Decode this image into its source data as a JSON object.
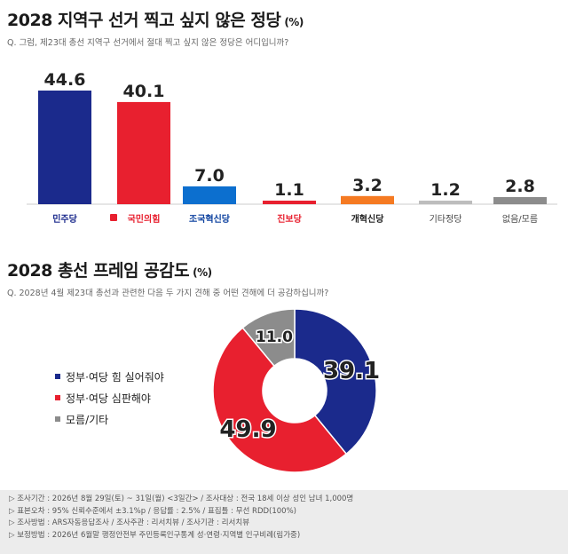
{
  "section1": {
    "title": "2028 지역구 선거 찍고 싶지 않은 정당",
    "unit": "(%)",
    "question": "Q. 그럼, 제23대 총선 지역구 선거에서 절대 찍고 싶지 않은 정당은 어디입니까?"
  },
  "section2": {
    "title": "2028 총선 프레임 공감도",
    "unit": "(%)",
    "question": "Q. 2028년 4월 제23대 총선과 관련한 다음 두 가지 견해 중 어떤 견해에 더 공감하십니까?"
  },
  "chart_data": [
    {
      "type": "bar",
      "categories": [
        "민주당",
        "국민의힘",
        "조국혁신당",
        "진보당",
        "개혁신당",
        "기타정당",
        "없음/모름"
      ],
      "values": [
        44.6,
        40.1,
        7.0,
        1.1,
        3.2,
        1.2,
        2.8
      ],
      "value_labels": [
        "44.6",
        "40.1",
        "7.0",
        "1.1",
        "3.2",
        "1.2",
        "2.8"
      ],
      "colors": [
        "#1b2a8c",
        "#e8202f",
        "#0c6fcf",
        "#e8202f",
        "#f57a22",
        "#bdbdbd",
        "#8c8c8c"
      ],
      "label_colors": [
        "#1b2a8c",
        "#e8202f",
        "#0a3f9e",
        "#e8202f",
        "#222222",
        "#444444",
        "#444444"
      ],
      "ylim": [
        0,
        50
      ]
    },
    {
      "type": "pie",
      "donut": true,
      "categories": [
        "정부·여당 힘 실어줘야",
        "정부·여당 심판해야",
        "모름/기타"
      ],
      "values": [
        39.1,
        49.9,
        11.0
      ],
      "value_labels": [
        "39.1",
        "49.9",
        "11.0"
      ],
      "colors": [
        "#1b2a8c",
        "#e8202f",
        "#8c8c8c"
      ]
    }
  ],
  "footer": {
    "line1": "▷ 조사기간 : 2026년 8월 29일(토) ~ 31일(월) <3일간> / 조사대상 : 전국 18세 이상 성인 남녀 1,000명",
    "line2": "▷ 표본오차 : 95% 신뢰수준에서 ±3.1%p / 응답률 : 2.5% / 표집틀 : 무선 RDD(100%)",
    "line3": "▷ 조사방법 : ARS자동응답조사 / 조사주관 : 리서치뷰 / 조사기관 : 리서치뷰",
    "line4": "▷ 보정방법 : 2026년 6월말 행정안전부 주민등록인구통계 성·연령·지역별 인구비례(림가중)"
  }
}
